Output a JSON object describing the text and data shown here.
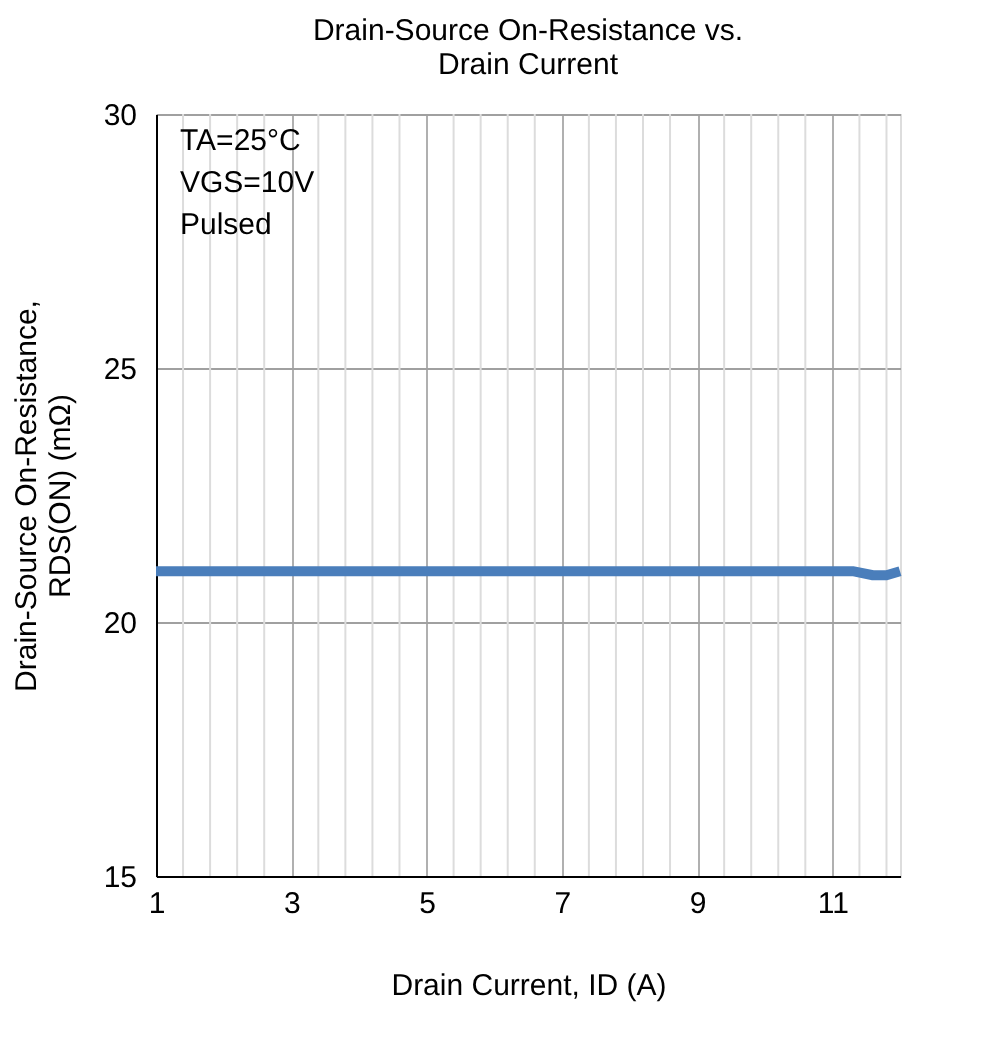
{
  "chart_data": {
    "type": "line",
    "title": [
      "Drain-Source On-Resistance vs.",
      "Drain Current"
    ],
    "xlabel": "Drain Current, ID (A)",
    "ylabel": [
      "Drain-Source On-Resistance,",
      "RDS(ON) (mΩ)"
    ],
    "annotations": [
      "TA=25°C",
      "VGS=10V",
      "Pulsed"
    ],
    "series": [
      {
        "color": "#4a7ebb",
        "x": [
          1,
          2,
          3,
          4,
          5,
          6,
          7,
          8,
          9,
          10,
          11,
          11.3,
          11.6,
          11.8,
          12
        ],
        "values": [
          21,
          21,
          21,
          21,
          21,
          21,
          21,
          21,
          21,
          21,
          21,
          21,
          20.92,
          20.92,
          21
        ]
      }
    ],
    "xlim": [
      1,
      12
    ],
    "xticks": [
      1,
      3,
      5,
      7,
      9,
      11
    ],
    "ylim": [
      15,
      30
    ],
    "yticks": [
      15,
      20,
      25,
      30
    ],
    "grid": true,
    "legend": false,
    "marker": "none",
    "line_style": "solid"
  }
}
